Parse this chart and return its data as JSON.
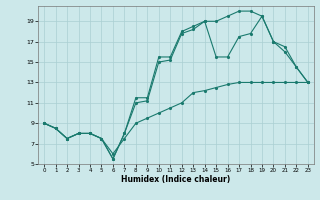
{
  "xlabel": "Humidex (Indice chaleur)",
  "bg_color": "#cce8ea",
  "grid_color": "#aacfd2",
  "line_color": "#1a7a6e",
  "xlim": [
    -0.5,
    23.5
  ],
  "ylim": [
    5,
    20.5
  ],
  "xticks": [
    0,
    1,
    2,
    3,
    4,
    5,
    6,
    7,
    8,
    9,
    10,
    11,
    12,
    13,
    14,
    15,
    16,
    17,
    18,
    19,
    20,
    21,
    22,
    23
  ],
  "yticks": [
    5,
    7,
    9,
    11,
    13,
    15,
    17,
    19
  ],
  "line1_x": [
    0,
    1,
    2,
    3,
    4,
    5,
    6,
    7,
    8,
    9,
    10,
    11,
    12,
    13,
    14,
    15,
    16,
    17,
    18,
    19,
    20,
    21,
    22,
    23
  ],
  "line1_y": [
    9,
    8.5,
    7.5,
    8,
    8,
    7.5,
    6.0,
    7.5,
    9,
    9.5,
    10,
    10.5,
    11,
    12,
    12.2,
    12.5,
    12.8,
    13,
    13,
    13,
    13,
    13,
    13,
    13
  ],
  "line2_x": [
    0,
    1,
    2,
    3,
    4,
    5,
    6,
    7,
    8,
    9,
    10,
    11,
    12,
    13,
    14,
    15,
    16,
    17,
    18,
    19,
    20,
    21,
    22,
    23
  ],
  "line2_y": [
    9,
    8.5,
    7.5,
    8,
    8,
    7.5,
    5.5,
    8.0,
    11.5,
    11.5,
    15.5,
    15.5,
    18.0,
    18.5,
    19.0,
    19.0,
    19.5,
    20.0,
    20.0,
    19.5,
    17.0,
    16.0,
    14.5,
    13.0
  ],
  "line3_x": [
    0,
    1,
    2,
    3,
    4,
    5,
    6,
    7,
    8,
    9,
    10,
    11,
    12,
    13,
    14,
    15,
    16,
    17,
    18,
    19,
    20,
    21,
    22,
    23
  ],
  "line3_y": [
    9,
    8.5,
    7.5,
    8,
    8,
    7.5,
    5.5,
    8.0,
    11.0,
    11.2,
    15.0,
    15.2,
    17.8,
    18.2,
    19.0,
    15.5,
    15.5,
    17.5,
    17.8,
    19.5,
    17.0,
    16.5,
    14.5,
    13.0
  ]
}
